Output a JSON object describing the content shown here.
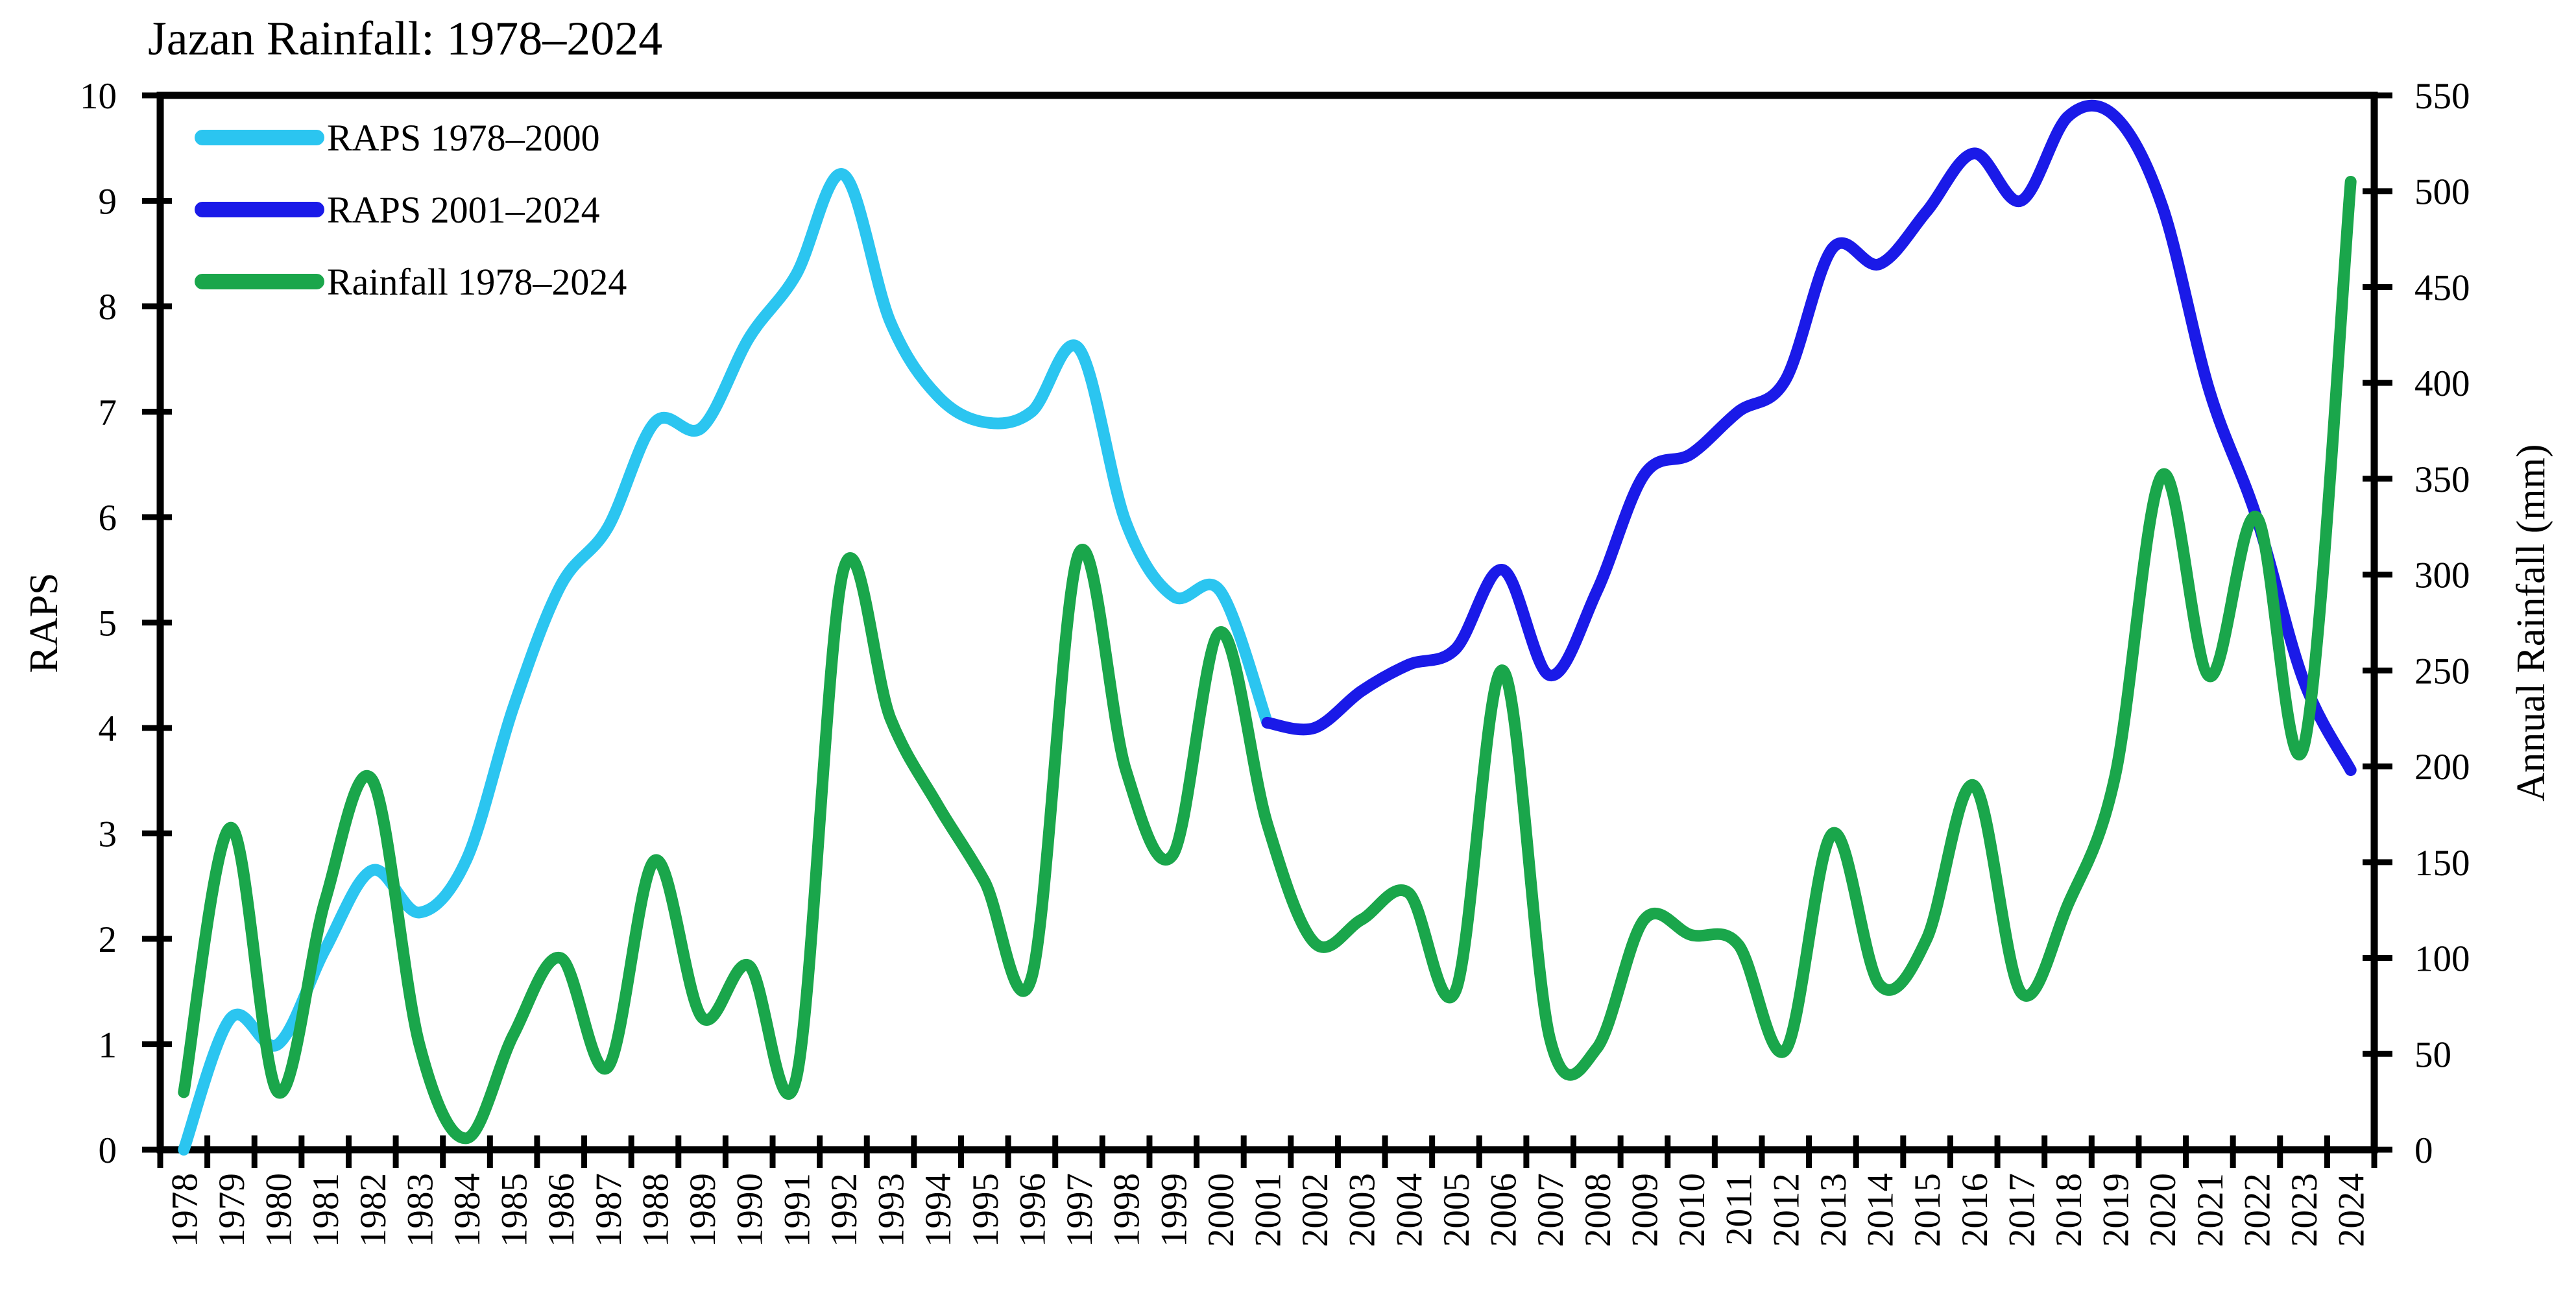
{
  "chart_data": {
    "type": "line",
    "title": "Jazan Rainfall: 1978–2024",
    "grid": false,
    "legend_position": "top-left-inside",
    "left_axis": {
      "label": "RAPS",
      "min": 0,
      "max": 10,
      "ticks": [
        0,
        1,
        2,
        3,
        4,
        5,
        6,
        7,
        8,
        9,
        10
      ]
    },
    "right_axis": {
      "label": "Annual Rainfall (mm)",
      "min": 0,
      "max": 550,
      "ticks": [
        0,
        50,
        100,
        150,
        200,
        250,
        300,
        350,
        400,
        450,
        500,
        550
      ]
    },
    "years": [
      1978,
      1979,
      1980,
      1981,
      1982,
      1983,
      1984,
      1985,
      1986,
      1987,
      1988,
      1989,
      1990,
      1991,
      1992,
      1993,
      1994,
      1995,
      1996,
      1997,
      1998,
      1999,
      2000,
      2001,
      2002,
      2003,
      2004,
      2005,
      2006,
      2007,
      2008,
      2009,
      2010,
      2011,
      2012,
      2013,
      2014,
      2015,
      2016,
      2017,
      2018,
      2019,
      2020,
      2021,
      2022,
      2023,
      2024
    ],
    "series": [
      {
        "name": "RAPS 1978–2000",
        "color": "#2bc5f0",
        "axis": "left",
        "values": [
          0,
          1.25,
          1.0,
          1.9,
          2.65,
          2.25,
          2.75,
          4.2,
          5.35,
          5.9,
          6.9,
          6.85,
          7.7,
          8.3,
          9.25,
          7.85,
          7.15,
          6.9,
          7.0,
          7.6,
          5.95,
          5.25,
          5.3,
          4.05,
          null,
          null,
          null,
          null,
          null,
          null,
          null,
          null,
          null,
          null,
          null,
          null,
          null,
          null,
          null,
          null,
          null,
          null,
          null,
          null,
          null,
          null,
          null
        ]
      },
      {
        "name": "RAPS 2001–2024",
        "color": "#1a1ae8",
        "axis": "left",
        "values": [
          null,
          null,
          null,
          null,
          null,
          null,
          null,
          null,
          null,
          null,
          null,
          null,
          null,
          null,
          null,
          null,
          null,
          null,
          null,
          null,
          null,
          null,
          null,
          4.05,
          4.0,
          4.35,
          4.6,
          4.75,
          5.5,
          4.5,
          5.3,
          6.4,
          6.6,
          7.0,
          7.3,
          8.55,
          8.4,
          8.9,
          9.45,
          9.0,
          9.8,
          9.8,
          8.95,
          7.2,
          6.0,
          4.45,
          3.6
        ]
      },
      {
        "name": "Rainfall 1978–2024",
        "color": "#1aa64b",
        "axis": "right",
        "values": [
          30,
          168,
          30,
          130,
          193,
          55,
          6,
          60,
          100,
          43,
          151,
          69,
          96,
          37,
          302,
          225,
          180,
          140,
          90,
          311,
          198,
          154,
          270,
          170,
          108,
          120,
          134,
          83,
          250,
          58,
          53,
          120,
          112,
          107,
          52,
          165,
          86,
          110,
          190,
          82,
          128,
          195,
          352,
          247,
          330,
          210,
          505
        ]
      }
    ]
  }
}
